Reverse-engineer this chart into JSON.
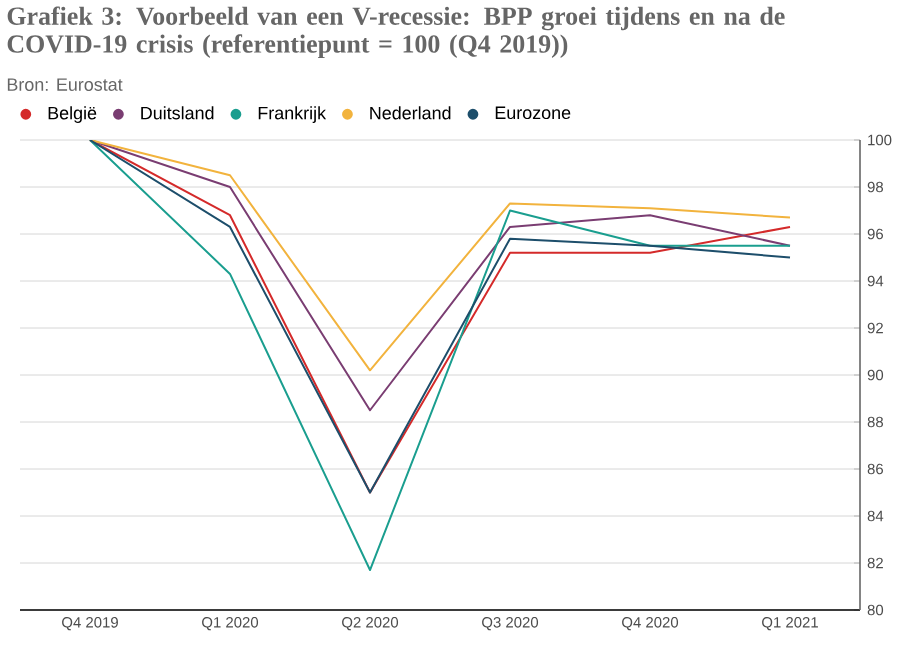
{
  "chart_data": {
    "type": "line",
    "title": "Grafiek 3: Voorbeeld van een V-recessie: BPP groei tijdens en na de COVID-19 crisis (referentiepunt = 100 (Q4 2019))",
    "subtitle": "Bron: Eurostat",
    "categories": [
      "Q4 2019",
      "Q1 2020",
      "Q2 2020",
      "Q3 2020",
      "Q4 2020",
      "Q1 2021"
    ],
    "series": [
      {
        "name": "België",
        "color": "#d42a2a",
        "values": [
          100,
          96.8,
          85.0,
          95.2,
          95.2,
          96.3
        ]
      },
      {
        "name": "Duitsland",
        "color": "#7a3d72",
        "values": [
          100,
          98.0,
          88.5,
          96.3,
          96.8,
          95.5
        ]
      },
      {
        "name": "Frankrijk",
        "color": "#1a9e8f",
        "values": [
          100,
          94.3,
          81.7,
          97.0,
          95.5,
          95.5
        ]
      },
      {
        "name": "Nederland",
        "color": "#f2b33d",
        "values": [
          100,
          98.5,
          90.2,
          97.3,
          97.1,
          96.7
        ]
      },
      {
        "name": "Eurozone",
        "color": "#1d4e6b",
        "values": [
          100,
          96.3,
          85.0,
          95.8,
          95.5,
          95.0
        ]
      }
    ],
    "ylim": [
      80,
      100
    ],
    "yticks": [
      80,
      82,
      84,
      86,
      88,
      90,
      92,
      94,
      96,
      98,
      100
    ],
    "grid": "y",
    "legend": "top left",
    "line_style": "solid"
  }
}
